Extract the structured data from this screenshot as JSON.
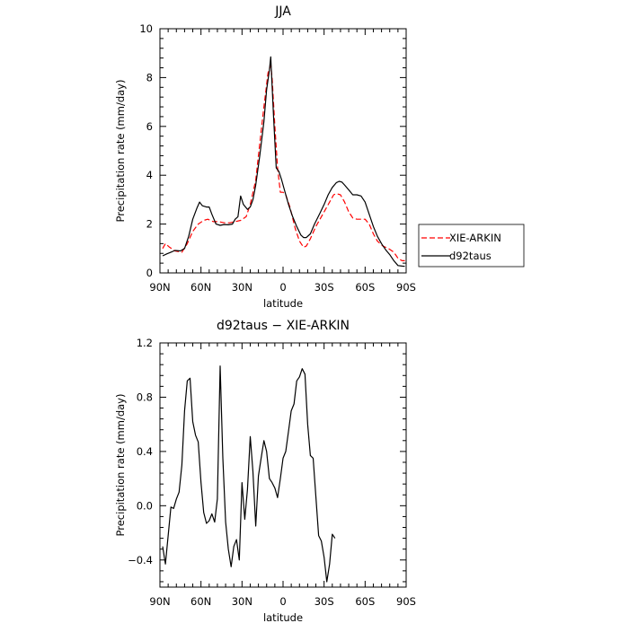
{
  "chart_data": [
    {
      "type": "line",
      "title": "JJA",
      "xlabel": "latitude",
      "ylabel": "Precipitation rate (mm/day)",
      "xlim": [
        90,
        -90
      ],
      "ylim": [
        0,
        10
      ],
      "xticks": [
        90,
        60,
        30,
        0,
        -30,
        -60,
        -90
      ],
      "xtick_labels": [
        "90N",
        "60N",
        "30N",
        "0",
        "30S",
        "60S",
        "90S"
      ],
      "yticks": [
        0,
        2,
        4,
        6,
        8,
        10
      ],
      "ytick_labels": [
        "0",
        "2",
        "4",
        "6",
        "8",
        "10"
      ],
      "legend_position": "right",
      "series": [
        {
          "name": "XIE-ARKIN",
          "color": "#ff0000",
          "dash": "dashed",
          "points": [
            [
              88,
              1.0
            ],
            [
              86,
              1.2
            ],
            [
              83,
              1.05
            ],
            [
              79,
              0.9
            ],
            [
              74,
              0.85
            ],
            [
              70,
              1.2
            ],
            [
              66,
              1.7
            ],
            [
              62,
              2.0
            ],
            [
              58,
              2.15
            ],
            [
              55,
              2.2
            ],
            [
              51,
              2.1
            ],
            [
              47,
              2.1
            ],
            [
              43,
              2.05
            ],
            [
              39,
              2.05
            ],
            [
              35,
              2.1
            ],
            [
              31,
              2.15
            ],
            [
              27,
              2.3
            ],
            [
              24,
              2.8
            ],
            [
              20,
              3.8
            ],
            [
              17,
              5.3
            ],
            [
              14,
              6.8
            ],
            [
              11,
              8.2
            ],
            [
              9,
              8.5
            ],
            [
              8,
              8.0
            ],
            [
              6,
              6.0
            ],
            [
              4,
              4.3
            ],
            [
              2,
              3.3
            ],
            [
              0,
              3.3
            ],
            [
              -2,
              3.2
            ],
            [
              -5,
              2.7
            ],
            [
              -9,
              1.8
            ],
            [
              -12,
              1.3
            ],
            [
              -15,
              1.05
            ],
            [
              -17,
              1.1
            ],
            [
              -20,
              1.4
            ],
            [
              -24,
              1.9
            ],
            [
              -27,
              2.2
            ],
            [
              -31,
              2.6
            ],
            [
              -34,
              2.9
            ],
            [
              -37,
              3.2
            ],
            [
              -39,
              3.25
            ],
            [
              -42,
              3.2
            ],
            [
              -45,
              2.9
            ],
            [
              -48,
              2.5
            ],
            [
              -51,
              2.25
            ],
            [
              -54,
              2.2
            ],
            [
              -57,
              2.2
            ],
            [
              -60,
              2.2
            ],
            [
              -63,
              2.0
            ],
            [
              -66,
              1.6
            ],
            [
              -69,
              1.3
            ],
            [
              -73,
              1.1
            ],
            [
              -77,
              1.0
            ],
            [
              -81,
              0.85
            ],
            [
              -84,
              0.6
            ],
            [
              -87,
              0.5
            ],
            [
              -89,
              0.5
            ]
          ]
        },
        {
          "name": "d92taus",
          "color": "#000000",
          "dash": "solid",
          "points": [
            [
              88,
              0.7
            ],
            [
              85,
              0.78
            ],
            [
              82,
              0.85
            ],
            [
              79,
              0.92
            ],
            [
              75,
              0.9
            ],
            [
              72,
              1.0
            ],
            [
              69,
              1.5
            ],
            [
              66,
              2.2
            ],
            [
              63,
              2.65
            ],
            [
              61,
              2.9
            ],
            [
              59,
              2.75
            ],
            [
              56,
              2.7
            ],
            [
              54,
              2.7
            ],
            [
              52,
              2.4
            ],
            [
              49,
              2.0
            ],
            [
              46,
              1.95
            ],
            [
              43,
              1.98
            ],
            [
              40,
              1.97
            ],
            [
              37,
              2.0
            ],
            [
              35,
              2.2
            ],
            [
              33,
              2.3
            ],
            [
              31,
              3.15
            ],
            [
              29,
              2.8
            ],
            [
              26,
              2.6
            ],
            [
              24,
              2.7
            ],
            [
              22,
              3.0
            ],
            [
              20,
              3.6
            ],
            [
              17,
              4.8
            ],
            [
              14,
              6.2
            ],
            [
              12,
              7.5
            ],
            [
              10,
              8.3
            ],
            [
              9,
              8.85
            ],
            [
              7,
              6.5
            ],
            [
              5,
              4.3
            ],
            [
              3,
              4.15
            ],
            [
              1,
              3.8
            ],
            [
              -1,
              3.4
            ],
            [
              -4,
              2.8
            ],
            [
              -7,
              2.3
            ],
            [
              -10,
              1.9
            ],
            [
              -13,
              1.55
            ],
            [
              -15,
              1.45
            ],
            [
              -17,
              1.45
            ],
            [
              -20,
              1.6
            ],
            [
              -23,
              2.0
            ],
            [
              -27,
              2.45
            ],
            [
              -30,
              2.8
            ],
            [
              -33,
              3.2
            ],
            [
              -36,
              3.5
            ],
            [
              -39,
              3.7
            ],
            [
              -41,
              3.75
            ],
            [
              -43,
              3.72
            ],
            [
              -45,
              3.6
            ],
            [
              -48,
              3.4
            ],
            [
              -51,
              3.2
            ],
            [
              -54,
              3.2
            ],
            [
              -57,
              3.15
            ],
            [
              -60,
              2.9
            ],
            [
              -63,
              2.4
            ],
            [
              -66,
              1.9
            ],
            [
              -69,
              1.5
            ],
            [
              -72,
              1.2
            ],
            [
              -75,
              0.95
            ],
            [
              -78,
              0.75
            ],
            [
              -81,
              0.5
            ],
            [
              -84,
              0.3
            ],
            [
              -87,
              0.28
            ],
            [
              -89,
              0.27
            ]
          ]
        }
      ]
    },
    {
      "type": "line",
      "title": "d92taus − XIE-ARKIN",
      "xlabel": "latitude",
      "ylabel": "Precipitation rate (mm/day)",
      "xlim": [
        90,
        -90
      ],
      "ylim": [
        -0.6,
        1.2
      ],
      "xticks": [
        90,
        60,
        30,
        0,
        -30,
        -60,
        -90
      ],
      "xtick_labels": [
        "90N",
        "60N",
        "30N",
        "0",
        "30S",
        "60S",
        "90S"
      ],
      "yticks": [
        -0.4,
        0.0,
        0.4,
        0.8,
        1.2
      ],
      "ytick_labels": [
        "−0.4",
        "0.0",
        "0.4",
        "0.8",
        "1.2"
      ],
      "series": [
        {
          "color": "#000000",
          "dash": "solid",
          "points": [
            [
              88,
              -0.3
            ],
            [
              86,
              -0.43
            ],
            [
              82,
              -0.01
            ],
            [
              80,
              -0.02
            ],
            [
              78,
              0.05
            ],
            [
              76,
              0.1
            ],
            [
              74,
              0.3
            ],
            [
              72,
              0.7
            ],
            [
              70,
              0.92
            ],
            [
              68,
              0.94
            ],
            [
              66,
              0.62
            ],
            [
              64,
              0.52
            ],
            [
              62,
              0.47
            ],
            [
              60,
              0.17
            ],
            [
              58,
              -0.05
            ],
            [
              56,
              -0.13
            ],
            [
              54,
              -0.11
            ],
            [
              52,
              -0.06
            ],
            [
              50,
              -0.12
            ],
            [
              48,
              0.05
            ],
            [
              46,
              1.03
            ],
            [
              44,
              0.35
            ],
            [
              42,
              -0.12
            ],
            [
              40,
              -0.32
            ],
            [
              38,
              -0.45
            ],
            [
              36,
              -0.3
            ],
            [
              34,
              -0.25
            ],
            [
              32,
              -0.4
            ],
            [
              30,
              0.17
            ],
            [
              28,
              -0.1
            ],
            [
              26,
              0.12
            ],
            [
              24,
              0.51
            ],
            [
              22,
              0.25
            ],
            [
              20,
              -0.15
            ],
            [
              18,
              0.22
            ],
            [
              16,
              0.35
            ],
            [
              14,
              0.48
            ],
            [
              12,
              0.4
            ],
            [
              10,
              0.2
            ],
            [
              8,
              0.17
            ],
            [
              6,
              0.13
            ],
            [
              4,
              0.06
            ],
            [
              2,
              0.2
            ],
            [
              0,
              0.35
            ],
            [
              -2,
              0.4
            ],
            [
              -4,
              0.55
            ],
            [
              -6,
              0.7
            ],
            [
              -8,
              0.75
            ],
            [
              -10,
              0.92
            ],
            [
              -12,
              0.95
            ],
            [
              -14,
              1.01
            ],
            [
              -16,
              0.97
            ],
            [
              -18,
              0.6
            ],
            [
              -20,
              0.37
            ],
            [
              -22,
              0.35
            ],
            [
              -24,
              0.07
            ],
            [
              -26,
              -0.22
            ],
            [
              -28,
              -0.26
            ],
            [
              -30,
              -0.38
            ],
            [
              -32,
              -0.56
            ],
            [
              -34,
              -0.43
            ],
            [
              -36,
              -0.21
            ],
            [
              -38,
              -0.24
            ]
          ]
        }
      ]
    }
  ]
}
